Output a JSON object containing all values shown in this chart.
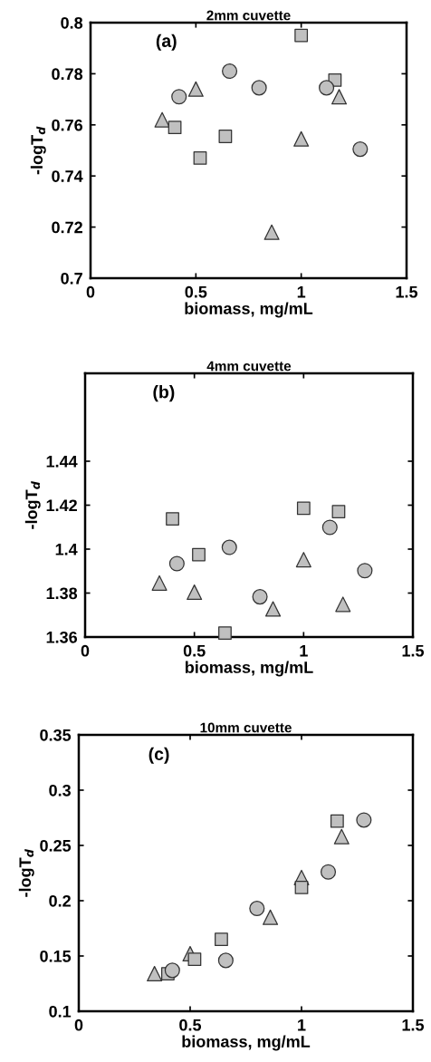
{
  "chart_data": [
    {
      "type": "scatter",
      "title": "2mm cuvette",
      "xlabel": "biomass, mg/mL",
      "ylabel": "-logT$_{d}$",
      "annotations": [
        "(a)"
      ],
      "xlim": [
        0,
        1.5
      ],
      "xticks": [
        0,
        0.5,
        1,
        1.5
      ],
      "ylim": [
        0.7,
        0.8
      ],
      "yticks": [
        0.7,
        0.72,
        0.74,
        0.76,
        0.78,
        0.8
      ],
      "series": [
        {
          "color": "#c0c0c0",
          "marker": "circle",
          "x": [
            0.42,
            0.66,
            0.8,
            1.12,
            1.28
          ],
          "values": [
            0.771,
            0.781,
            0.7745,
            0.7745,
            0.7505
          ]
        },
        {
          "color": "#c0c0c0",
          "marker": "square",
          "x": [
            0.4,
            0.52,
            0.64,
            1.0,
            1.16
          ],
          "values": [
            0.759,
            0.747,
            0.7555,
            0.795,
            0.7775
          ]
        },
        {
          "color": "#c0c0c0",
          "marker": "triangle",
          "x": [
            0.34,
            0.5,
            0.86,
            1.0,
            1.18
          ],
          "values": [
            0.762,
            0.774,
            0.718,
            0.7545,
            0.771
          ]
        }
      ]
    },
    {
      "type": "scatter",
      "title": "4mm cuvette",
      "xlabel": "biomass, mg/mL",
      "ylabel": "-logT$_{d}$",
      "annotations": [
        "(b)"
      ],
      "xlim": [
        0,
        1.5
      ],
      "xticks": [
        0,
        0.5,
        1,
        1.5
      ],
      "ylim": [
        1.36,
        1.48
      ],
      "yticks": [
        1.36,
        1.38,
        1.4,
        1.42,
        1.44
      ],
      "series": [
        {
          "color": "#c0c0c0",
          "marker": "circle",
          "x": [
            0.42,
            0.66,
            0.8,
            1.12,
            1.28
          ],
          "values": [
            1.3934,
            1.4008,
            1.3783,
            1.4099,
            1.3902
          ]
        },
        {
          "color": "#c0c0c0",
          "marker": "square",
          "x": [
            0.4,
            0.52,
            0.64,
            1.0,
            1.16
          ],
          "values": [
            1.4138,
            1.3975,
            1.3618,
            1.4186,
            1.4171
          ]
        },
        {
          "color": "#c0c0c0",
          "marker": "triangle",
          "x": [
            0.34,
            0.5,
            0.86,
            1.0,
            1.18
          ],
          "values": [
            1.3846,
            1.3804,
            1.3728,
            1.3952,
            1.3749
          ]
        }
      ]
    },
    {
      "type": "scatter",
      "title": "10mm cuvette",
      "xlabel": "biomass, mg/mL",
      "ylabel": "-logT$_{d}$",
      "annotations": [
        "(c)"
      ],
      "xlim": [
        0,
        1.5
      ],
      "xticks": [
        0,
        0.5,
        1,
        1.5
      ],
      "ylim": [
        0.1,
        0.35
      ],
      "yticks": [
        0.1,
        0.15,
        0.2,
        0.25,
        0.3,
        0.35
      ],
      "series": [
        {
          "color": "#c0c0c0",
          "marker": "circle",
          "x": [
            0.42,
            0.66,
            0.8,
            1.12,
            1.28
          ],
          "values": [
            0.137,
            0.146,
            0.193,
            0.226,
            0.273
          ]
        },
        {
          "color": "#c0c0c0",
          "marker": "square",
          "x": [
            0.4,
            0.52,
            0.64,
            1.0,
            1.16
          ],
          "values": [
            0.134,
            0.147,
            0.165,
            0.212,
            0.272
          ]
        },
        {
          "color": "#c0c0c0",
          "marker": "triangle",
          "x": [
            0.34,
            0.5,
            0.86,
            1.0,
            1.18
          ],
          "values": [
            0.134,
            0.152,
            0.185,
            0.221,
            0.258
          ]
        }
      ]
    }
  ]
}
